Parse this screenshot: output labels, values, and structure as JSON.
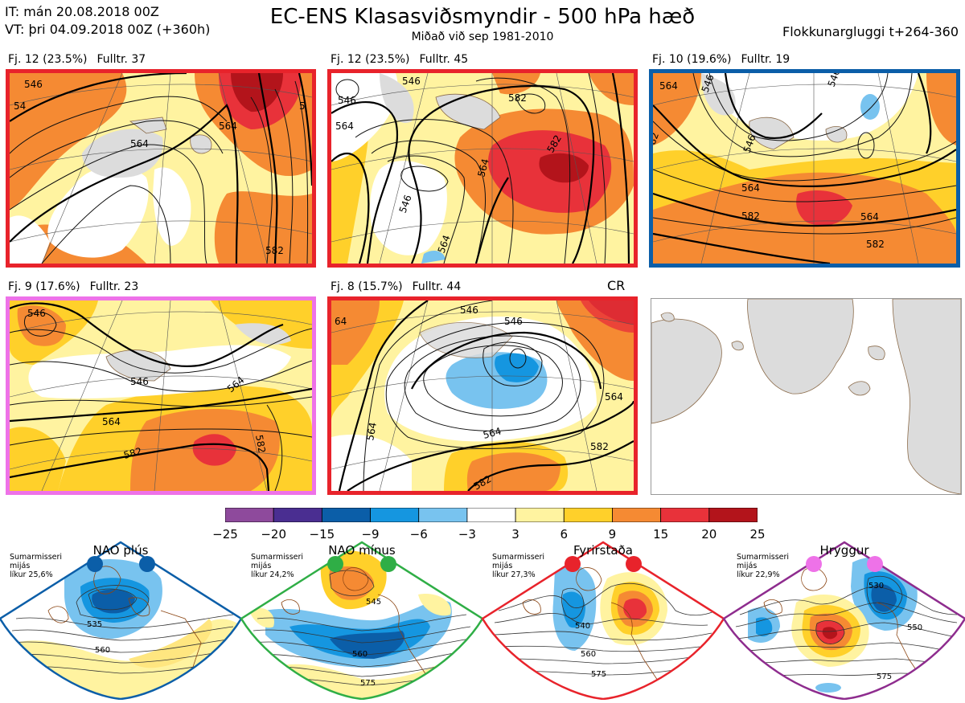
{
  "header": {
    "it": "IT: mán 20.08.2018 00Z",
    "vt": "VT: þri 04.09.2018 00Z  (+360h)",
    "title": "EC-ENS Klasasviðsmyndir - 500 hPa hæð",
    "subtitle": "Miðað við sep 1981-2010",
    "window": "Flokkunargluggi t+264-360"
  },
  "panels": [
    {
      "count": "Fj. 12 (23.5%)",
      "rep": "Fulltr. 37",
      "border": "#e8232b",
      "contours": [
        "546",
        "564",
        "564",
        "582",
        "54",
        "5"
      ]
    },
    {
      "count": "Fj. 12 (23.5%)",
      "rep": "Fulltr. 45",
      "border": "#e8232b",
      "contours": [
        "546",
        "546",
        "564",
        "546",
        "564",
        "582",
        "564",
        "582"
      ]
    },
    {
      "count": "Fj. 10 (19.6%)",
      "rep": "Fulltr. 19",
      "border": "#0b5ea8",
      "contours": [
        "564",
        "546",
        "546",
        "564",
        "564",
        "582",
        "582",
        "546",
        "82"
      ]
    },
    {
      "count": "Fj. 9 (17.6%)",
      "rep": "Fulltr. 23",
      "border": "#ee72e8",
      "contours": [
        "546",
        "546",
        "564",
        "564",
        "582",
        "582"
      ]
    },
    {
      "count": "Fj. 8 (15.7%)",
      "rep": "Fulltr. 44",
      "border": "#e8232b",
      "contours": [
        "546",
        "546",
        "564",
        "564",
        "564",
        "582",
        "582",
        "64"
      ]
    }
  ],
  "cr_label": "CR",
  "colorbar": {
    "labels": [
      "−25",
      "−20",
      "−15",
      "−9",
      "−6",
      "−3",
      "3",
      "6",
      "9",
      "15",
      "20",
      "25"
    ],
    "colors": [
      "#8e4a9c",
      "#4a2e91",
      "#0b5ea8",
      "#1596e0",
      "#78c3ef",
      "#ffffff",
      "#fff3a0",
      "#ffd02a",
      "#f58a33",
      "#e8323a",
      "#b3141b"
    ]
  },
  "regimes": [
    {
      "title": "NAO plús",
      "season": "Sumarmisseri",
      "measure": "mijás",
      "prob": "líkur 25,6%",
      "color": "#0b5ea8",
      "dot": "#0b5ea8",
      "contours": [
        "535",
        "560"
      ]
    },
    {
      "title": "NAO mínus",
      "season": "Sumarmisseri",
      "measure": "mijás",
      "prob": "líkur 24,2%",
      "color": "#2fae46",
      "dot": "#2fae46",
      "contours": [
        "545",
        "560",
        "575"
      ]
    },
    {
      "title": "Fyrirstaða",
      "season": "Sumarmisseri",
      "measure": "mijás",
      "prob": "líkur 27,3%",
      "color": "#e8232b",
      "dot": "#e8232b",
      "contours": [
        "540",
        "560",
        "575"
      ]
    },
    {
      "title": "Hryggur",
      "season": "Sumarmisseri",
      "measure": "mijás",
      "prob": "líkur 22,9%",
      "color": "#8e2c8e",
      "dot": "#ee72e8",
      "contours": [
        "530",
        "550",
        "575"
      ]
    }
  ]
}
